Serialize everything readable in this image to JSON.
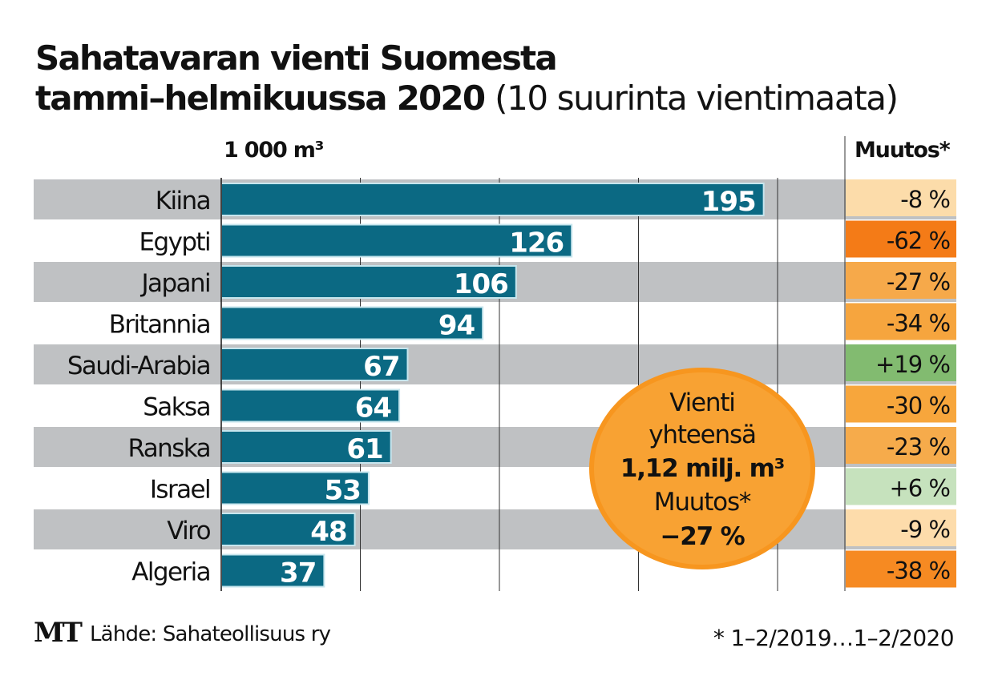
{
  "title": {
    "line1": "Sahatavaran vienti Suomesta",
    "line2_bold": "tammi–helmikuussa 2020",
    "line2_light": "(10 suurinta vientimaata)"
  },
  "unit_label": "1 000 m³",
  "change_header": "Muutos*",
  "chart_data": {
    "type": "bar",
    "orientation": "horizontal",
    "title": "Sahatavaran vienti Suomesta tammi–helmikuussa 2020 (10 suurinta vientimaata)",
    "xlabel": "1 000 m³",
    "ylabel": "",
    "xlim": [
      0,
      200
    ],
    "gridlines": [
      0,
      50,
      100,
      150,
      200
    ],
    "grid": true,
    "categories": [
      "Kiina",
      "Egypti",
      "Japani",
      "Britannia",
      "Saudi-Arabia",
      "Saksa",
      "Ranska",
      "Israel",
      "Viro",
      "Algeria"
    ],
    "values": [
      195,
      126,
      106,
      94,
      67,
      64,
      61,
      53,
      48,
      37
    ],
    "value_labels": [
      "195",
      "126",
      "106",
      "94",
      "67",
      "64",
      "61",
      "53",
      "48",
      "37"
    ],
    "bar_color": "#0b6983",
    "change_column": {
      "header": "Muutos*",
      "labels": [
        "-8 %",
        "-62 %",
        "-27 %",
        "-34 %",
        "+19 %",
        "-30 %",
        "-23 %",
        "+6 %",
        "-9 %",
        "-38 %"
      ],
      "values": [
        -8,
        -62,
        -27,
        -34,
        19,
        -30,
        -23,
        6,
        -9,
        -38
      ],
      "colors": [
        "#fcdcaa",
        "#f47b17",
        "#f6a94a",
        "#f6a53e",
        "#82bb70",
        "#f7a63c",
        "#f6ab4b",
        "#c6e2bd",
        "#fddcab",
        "#f68a22"
      ]
    }
  },
  "summary": {
    "line1": "Vienti",
    "line2": "yhteensä",
    "total": "1,12 milj. m³",
    "change_label": "Muutos*",
    "change_value": "−27 %",
    "color": "#f8a233"
  },
  "footer": {
    "logo": "MT",
    "source": "Lähde: Sahateollisuus ry",
    "note": "* 1–2/2019…1–2/2020"
  }
}
